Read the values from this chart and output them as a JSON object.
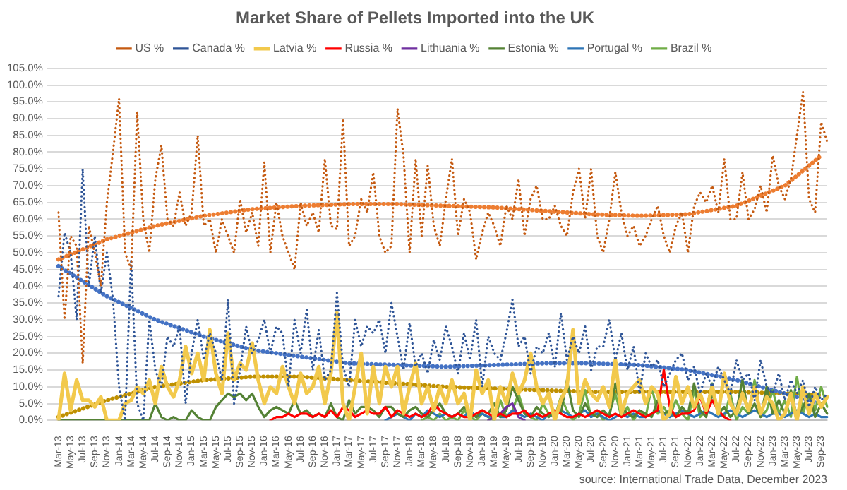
{
  "chart_data": {
    "type": "line",
    "title": "Market Share of Pellets Imported into the UK",
    "categories": [
      "Mar-13",
      null,
      "May-13",
      null,
      "Jul-13",
      null,
      "Sep-13",
      null,
      "Nov-13",
      null,
      "Jan-14",
      null,
      "Mar-14",
      null,
      "May-14",
      null,
      "Jul-14",
      null,
      "Sep-14",
      null,
      "Nov-14",
      null,
      "Jan-15",
      null,
      "Mar-15",
      null,
      "May-15",
      null,
      "Jul-15",
      null,
      "Sep-15",
      null,
      "Nov-15",
      null,
      "Jan-16",
      null,
      "Mar-16",
      null,
      "May-16",
      null,
      "Jul-16",
      null,
      "Sep-16",
      null,
      "Nov-16",
      null,
      "Jan-17",
      null,
      "Mar-17",
      null,
      "May-17",
      null,
      "Jul-17",
      null,
      "Sep-17",
      null,
      "Nov-17",
      null,
      "Jan-18",
      null,
      "Mar-18",
      null,
      "May-18",
      null,
      "Jul-18",
      null,
      "Sep-18",
      null,
      "Nov-18",
      null,
      "Jan-19",
      null,
      "Mar-19",
      null,
      "May-19",
      null,
      "Jul-19",
      null,
      "Sep-19",
      null,
      "Nov-19",
      null,
      "Jan-20",
      null,
      "Mar-20",
      null,
      "May-20",
      null,
      "Jul-20",
      null,
      "Sep-20",
      null,
      "Nov-20",
      null,
      "Jan-21",
      null,
      "Mar-21",
      null,
      "May-21",
      null,
      "Jul-21",
      null,
      "Sep-21",
      null,
      "Nov-21",
      null,
      "Jan-22",
      null,
      "Mar-22",
      null,
      "May-22",
      null,
      "Jul-22",
      null,
      "Sep-22",
      null,
      "Nov-22",
      null,
      "Jan-23",
      null,
      "Mar-23",
      null,
      "May-23",
      null,
      "Jul-23",
      null,
      "Sep-23",
      null
    ],
    "series": [
      {
        "name": "US %",
        "color": "#c55a11",
        "line_style": "dotted",
        "values": [
          62,
          30,
          55,
          52,
          17,
          58,
          50,
          40,
          65,
          80,
          96,
          50,
          45,
          92,
          60,
          50,
          72,
          82,
          60,
          58,
          68,
          58,
          62,
          85,
          58,
          60,
          50,
          60,
          55,
          50,
          66,
          56,
          62,
          52,
          77,
          50,
          65,
          55,
          50,
          45,
          65,
          58,
          62,
          56,
          78,
          58,
          57,
          90,
          52,
          55,
          66,
          62,
          74,
          55,
          50,
          52,
          93,
          79,
          50,
          78,
          55,
          76,
          58,
          52,
          66,
          78,
          55,
          66,
          62,
          48,
          56,
          62,
          58,
          52,
          64,
          60,
          72,
          55,
          66,
          70,
          60,
          60,
          64,
          58,
          55,
          68,
          75,
          60,
          75,
          55,
          50,
          60,
          74,
          62,
          55,
          58,
          52,
          55,
          60,
          64,
          55,
          50,
          58,
          62,
          50,
          64,
          68,
          65,
          70,
          62,
          78,
          60,
          60,
          74,
          60,
          63,
          70,
          62,
          79,
          70,
          66,
          72,
          85,
          98,
          66,
          62,
          89,
          83
        ]
      },
      {
        "name": "Canada %",
        "color": "#2f5597",
        "line_style": "dotted",
        "values": [
          37,
          56,
          50,
          30,
          75,
          40,
          55,
          38,
          50,
          36,
          10,
          0,
          48,
          5,
          0,
          30,
          15,
          10,
          25,
          22,
          28,
          5,
          20,
          30,
          18,
          26,
          20,
          12,
          36,
          5,
          15,
          28,
          20,
          24,
          30,
          20,
          28,
          26,
          10,
          30,
          20,
          33,
          15,
          27,
          12,
          15,
          38,
          16,
          10,
          30,
          22,
          28,
          26,
          30,
          20,
          35,
          25,
          15,
          29,
          16,
          20,
          14,
          24,
          18,
          28,
          22,
          14,
          26,
          18,
          30,
          10,
          25,
          20,
          18,
          26,
          36,
          22,
          25,
          14,
          22,
          20,
          26,
          16,
          32,
          18,
          25,
          20,
          28,
          15,
          22,
          22,
          30,
          18,
          26,
          15,
          22,
          8,
          20,
          16,
          18,
          10,
          14,
          18,
          20,
          12,
          16,
          8,
          14,
          10,
          16,
          12,
          8,
          18,
          12,
          14,
          6,
          18,
          10,
          8,
          14,
          6,
          12,
          8,
          12,
          4,
          10,
          6,
          8
        ]
      },
      {
        "name": "Latvia %",
        "color": "#f2c94c",
        "values": [
          0,
          14,
          3,
          12,
          6,
          6,
          4,
          7,
          0,
          0,
          0,
          5,
          6,
          10,
          8,
          12,
          5,
          16,
          10,
          7,
          12,
          22,
          14,
          20,
          12,
          27,
          14,
          8,
          26,
          12,
          17,
          15,
          23,
          12,
          5,
          10,
          8,
          16,
          10,
          5,
          14,
          8,
          10,
          16,
          5,
          14,
          32,
          5,
          0,
          10,
          20,
          2,
          16,
          5,
          16,
          10,
          16,
          2,
          10,
          17,
          5,
          10,
          3,
          10,
          5,
          12,
          5,
          8,
          0,
          15,
          8,
          12,
          0,
          10,
          5,
          14,
          8,
          12,
          20,
          10,
          5,
          8,
          0,
          6,
          10,
          27,
          5,
          12,
          8,
          6,
          10,
          4,
          18,
          2,
          8,
          10,
          12,
          5,
          10,
          8,
          0,
          2,
          13,
          5,
          10,
          4,
          8,
          3,
          10,
          2,
          14,
          5,
          2,
          8,
          3,
          10,
          2,
          7,
          5,
          0,
          2,
          8,
          0,
          10,
          2,
          8,
          4,
          7
        ]
      },
      {
        "name": "Russia %",
        "color": "#ff0000",
        "values": [
          null,
          null,
          null,
          null,
          null,
          null,
          null,
          null,
          null,
          null,
          null,
          null,
          null,
          null,
          null,
          null,
          null,
          null,
          null,
          null,
          null,
          null,
          null,
          null,
          null,
          null,
          null,
          null,
          null,
          null,
          null,
          null,
          null,
          null,
          null,
          0,
          1,
          1,
          2,
          1,
          2,
          2,
          1,
          2,
          1,
          3,
          1,
          4,
          3,
          1,
          2,
          3,
          2,
          2,
          4,
          1,
          3,
          2,
          1,
          2,
          1,
          2,
          5,
          3,
          2,
          1,
          2,
          1,
          1,
          2,
          3,
          2,
          1,
          2,
          1,
          2,
          2,
          3,
          1,
          2,
          1,
          2,
          3,
          2,
          1,
          1,
          2,
          1,
          2,
          3,
          2,
          1,
          2,
          1,
          2,
          3,
          2,
          1,
          2,
          3,
          15,
          4,
          1,
          2,
          2,
          3,
          7,
          2,
          6,
          3,
          1,
          0,
          null,
          null,
          null,
          null,
          null,
          null,
          null,
          null,
          null,
          null,
          null,
          null,
          null,
          null,
          null,
          null
        ]
      },
      {
        "name": "Lithuania %",
        "color": "#7030a0",
        "values": [
          null,
          null,
          null,
          null,
          null,
          null,
          null,
          null,
          null,
          null,
          null,
          null,
          null,
          null,
          null,
          null,
          null,
          null,
          null,
          null,
          null,
          null,
          null,
          null,
          null,
          null,
          null,
          null,
          null,
          null,
          null,
          null,
          null,
          null,
          null,
          null,
          null,
          null,
          null,
          null,
          null,
          null,
          null,
          null,
          null,
          null,
          null,
          null,
          null,
          null,
          null,
          null,
          null,
          null,
          null,
          null,
          null,
          null,
          null,
          null,
          null,
          null,
          null,
          null,
          null,
          null,
          null,
          null,
          null,
          null,
          null,
          0,
          1,
          2,
          4,
          5,
          1,
          0,
          null,
          null,
          null,
          null,
          null,
          null,
          null,
          null,
          null,
          null,
          null,
          null,
          null,
          null,
          null,
          null,
          null,
          null,
          null,
          null,
          null,
          null,
          null,
          null,
          null,
          null,
          null,
          null,
          null,
          null,
          null,
          null,
          null,
          null,
          null,
          null,
          null,
          null,
          null,
          null,
          null,
          null,
          null,
          null,
          null,
          null,
          null,
          null,
          null,
          null
        ]
      },
      {
        "name": "Estonia %",
        "color": "#548235",
        "values": [
          0,
          0,
          0,
          0,
          0,
          0,
          0,
          0,
          0,
          0,
          0,
          0,
          0,
          0,
          0,
          0,
          5,
          1,
          0,
          1,
          0,
          0,
          3,
          1,
          0,
          0,
          4,
          6,
          8,
          7,
          8,
          6,
          8,
          4,
          1,
          3,
          4,
          3,
          2,
          6,
          2,
          3,
          1,
          2,
          1,
          5,
          1,
          0,
          6,
          2,
          4,
          4,
          3,
          1,
          4,
          4,
          2,
          1,
          3,
          4,
          2,
          1,
          3,
          5,
          2,
          1,
          2,
          4,
          2,
          1,
          3,
          2,
          5,
          1,
          3,
          10,
          6,
          2,
          1,
          4,
          2,
          1,
          3,
          2,
          12,
          3,
          1,
          5,
          2,
          1,
          3,
          1,
          11,
          4,
          2,
          1,
          3,
          2,
          1,
          6,
          2,
          3,
          1,
          4,
          2,
          11,
          3,
          1,
          8,
          2,
          4,
          1,
          3,
          12,
          2,
          5,
          1,
          10,
          2,
          6,
          2,
          9,
          1,
          4,
          8,
          1,
          5,
          2
        ]
      },
      {
        "name": "Portugal %",
        "color": "#2e75b6",
        "values": [
          null,
          null,
          null,
          null,
          null,
          null,
          null,
          null,
          null,
          null,
          null,
          null,
          null,
          null,
          null,
          null,
          null,
          null,
          null,
          null,
          null,
          null,
          null,
          null,
          null,
          null,
          null,
          null,
          null,
          null,
          null,
          null,
          null,
          null,
          null,
          null,
          null,
          null,
          null,
          null,
          null,
          null,
          null,
          null,
          null,
          null,
          null,
          null,
          null,
          null,
          null,
          null,
          null,
          null,
          0,
          1,
          2,
          1,
          0,
          2,
          1,
          3,
          2,
          1,
          2,
          1,
          2,
          1,
          3,
          1,
          2,
          1,
          2,
          1,
          1,
          3,
          2,
          1,
          2,
          1,
          0,
          2,
          1,
          3,
          2,
          1,
          2,
          3,
          1,
          2,
          1,
          0,
          1,
          2,
          1,
          2,
          1,
          1,
          2,
          3,
          2,
          1,
          2,
          3,
          2,
          1,
          2,
          3,
          2,
          1,
          2,
          3,
          2,
          1,
          2,
          3,
          2,
          1,
          2,
          2,
          1,
          2,
          3,
          2,
          1,
          2,
          1,
          1
        ]
      },
      {
        "name": "Brazil %",
        "color": "#70ad47",
        "values": [
          null,
          null,
          null,
          null,
          null,
          null,
          null,
          null,
          null,
          null,
          null,
          null,
          null,
          null,
          null,
          null,
          null,
          null,
          null,
          null,
          null,
          null,
          null,
          null,
          null,
          null,
          null,
          null,
          null,
          null,
          null,
          null,
          null,
          null,
          null,
          null,
          null,
          null,
          null,
          null,
          null,
          null,
          null,
          null,
          null,
          null,
          null,
          null,
          null,
          null,
          null,
          null,
          null,
          null,
          null,
          null,
          null,
          null,
          null,
          null,
          0,
          1,
          0,
          2,
          0,
          1,
          0,
          3,
          1,
          0,
          2,
          1,
          0,
          6,
          1,
          3,
          8,
          2,
          1,
          0,
          5,
          2,
          1,
          7,
          3,
          0,
          2,
          9,
          1,
          3,
          0,
          2,
          8,
          1,
          4,
          0,
          3,
          1,
          10,
          2,
          4,
          1,
          6,
          2,
          0,
          9,
          1,
          3,
          11,
          2,
          1,
          8,
          0,
          4,
          2,
          12,
          1,
          3,
          9,
          2,
          6,
          1,
          13,
          2,
          8,
          3,
          10,
          4
        ]
      },
      {
        "color": "#ed7d31",
        "line_style": "dotted",
        "x": [
          "Mar-13",
          "Nov-13",
          "Jul-14",
          "Mar-15",
          "Nov-15",
          "Jul-16",
          "Mar-17",
          "Nov-17",
          "Jul-18",
          "Mar-19",
          "Nov-19",
          "Jul-20",
          "Mar-21",
          "Nov-21",
          "Jul-22",
          "Mar-23",
          "Sep-23"
        ],
        "values": [
          48,
          54,
          58,
          61,
          63,
          64,
          64.5,
          64.5,
          64,
          63.5,
          62.5,
          61.5,
          61,
          61.5,
          64,
          70,
          79
        ]
      },
      {
        "color": "#4472c4",
        "line_style": "dotted",
        "x": [
          "Mar-13",
          "Nov-13",
          "Jul-14",
          "Mar-15",
          "Nov-15",
          "Jul-16",
          "Mar-17",
          "Nov-17",
          "Jul-18",
          "Mar-19",
          "Nov-19",
          "Jul-20",
          "Mar-21",
          "Nov-21",
          "Jul-22",
          "Mar-23",
          "Sep-23"
        ],
        "values": [
          46,
          37,
          30,
          25,
          21,
          19,
          17,
          16.5,
          16,
          16.5,
          17,
          17,
          16.5,
          15,
          12,
          8,
          5
        ]
      },
      {
        "color": "#bf9000",
        "line_style": "dotted",
        "x": [
          "Mar-13",
          "Nov-13",
          "Jul-14",
          "Mar-15",
          "Nov-15",
          "Jul-16",
          "Mar-17",
          "Nov-17",
          "Jul-18",
          "Mar-19",
          "Nov-19",
          "Jul-20",
          "Mar-21",
          "Nov-21",
          "Jul-22",
          "Mar-23",
          "Sep-23"
        ],
        "values": [
          1,
          6,
          10,
          12,
          13,
          13,
          12,
          11,
          10,
          9.5,
          9,
          8.5,
          8.5,
          8.5,
          8.5,
          8,
          7.5
        ]
      }
    ],
    "ylim": [
      0,
      105
    ],
    "yticks": [
      {
        "value": 0,
        "label": "0.0%"
      },
      {
        "value": 5,
        "label": "5.0%"
      },
      {
        "value": 10,
        "label": "10.0%"
      },
      {
        "value": 15,
        "label": "15.0%"
      },
      {
        "value": 20,
        "label": "20.0%"
      },
      {
        "value": 25,
        "label": "25.0%"
      },
      {
        "value": 30,
        "label": "30.0%"
      },
      {
        "value": 35,
        "label": "35.0%"
      },
      {
        "value": 40,
        "label": "40.0%"
      },
      {
        "value": 45,
        "label": "45.0%"
      },
      {
        "value": 50,
        "label": "50.0%"
      },
      {
        "value": 55,
        "label": "55.0%"
      },
      {
        "value": 60,
        "label": "60.0%"
      },
      {
        "value": 65,
        "label": "65.0%"
      },
      {
        "value": 70,
        "label": "70.0%"
      },
      {
        "value": 75,
        "label": "75.0%"
      },
      {
        "value": 80,
        "label": "80.0%"
      },
      {
        "value": 85,
        "label": "85.0%"
      },
      {
        "value": 90,
        "label": "90.0%"
      },
      {
        "value": 95,
        "label": "95.0%"
      },
      {
        "value": 100,
        "label": "100.0%"
      },
      {
        "value": 105,
        "label": "105.0%"
      }
    ],
    "grid": "y",
    "legend": "top",
    "marker": "none",
    "annotations": [
      "source: International Trade Data, December 2023"
    ]
  }
}
